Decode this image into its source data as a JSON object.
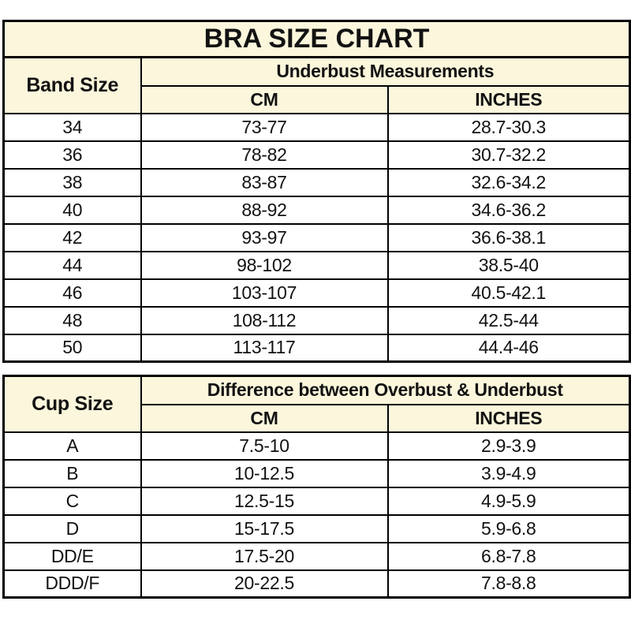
{
  "title": "BRA SIZE CHART",
  "colors": {
    "header_bg": "#fcf7dc",
    "border": "#000000",
    "text": "#121212",
    "row_bg": "#ffffff"
  },
  "band_table": {
    "row_header": "Band Size",
    "group_header": "Underbust Measurements",
    "columns": {
      "cm": "CM",
      "inches": "INCHES"
    },
    "rows": [
      {
        "size": "34",
        "cm": "73-77",
        "inches": "28.7-30.3"
      },
      {
        "size": "36",
        "cm": "78-82",
        "inches": "30.7-32.2"
      },
      {
        "size": "38",
        "cm": "83-87",
        "inches": "32.6-34.2"
      },
      {
        "size": "40",
        "cm": "88-92",
        "inches": "34.6-36.2"
      },
      {
        "size": "42",
        "cm": "93-97",
        "inches": "36.6-38.1"
      },
      {
        "size": "44",
        "cm": "98-102",
        "inches": "38.5-40"
      },
      {
        "size": "46",
        "cm": "103-107",
        "inches": "40.5-42.1"
      },
      {
        "size": "48",
        "cm": "108-112",
        "inches": "42.5-44"
      },
      {
        "size": "50",
        "cm": "113-117",
        "inches": "44.4-46"
      }
    ]
  },
  "cup_table": {
    "row_header": "Cup Size",
    "group_header": "Difference between Overbust & Underbust",
    "columns": {
      "cm": "CM",
      "inches": "INCHES"
    },
    "rows": [
      {
        "size": "A",
        "cm": "7.5-10",
        "inches": "2.9-3.9"
      },
      {
        "size": "B",
        "cm": "10-12.5",
        "inches": "3.9-4.9"
      },
      {
        "size": "C",
        "cm": "12.5-15",
        "inches": "4.9-5.9"
      },
      {
        "size": "D",
        "cm": "15-17.5",
        "inches": "5.9-6.8"
      },
      {
        "size": "DD/E",
        "cm": "17.5-20",
        "inches": "6.8-7.8"
      },
      {
        "size": "DDD/F",
        "cm": "20-22.5",
        "inches": "7.8-8.8"
      }
    ]
  }
}
